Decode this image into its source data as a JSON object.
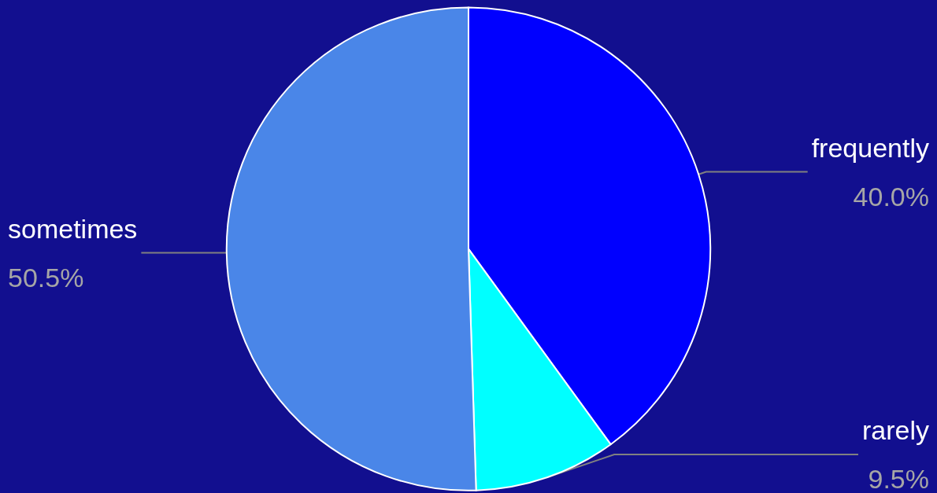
{
  "chart_data": {
    "type": "pie",
    "categories": [
      "frequently",
      "rarely",
      "sometimes"
    ],
    "values": [
      40.0,
      9.5,
      50.5
    ],
    "colors": [
      "#0000ff",
      "#00ffff",
      "#4a86e8"
    ],
    "value_labels": [
      "40.0%",
      "9.5%",
      "50.5%"
    ],
    "legend": false
  }
}
